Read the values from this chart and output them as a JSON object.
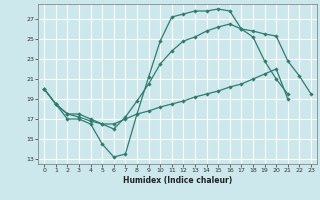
{
  "xlabel": "Humidex (Indice chaleur)",
  "background_color": "#cce8ec",
  "grid_color": "#ffffff",
  "line_color": "#2e7d6e",
  "xlim": [
    -0.5,
    23.5
  ],
  "ylim": [
    12.5,
    28.5
  ],
  "xticks": [
    0,
    1,
    2,
    3,
    4,
    5,
    6,
    7,
    8,
    9,
    10,
    11,
    12,
    13,
    14,
    15,
    16,
    17,
    18,
    19,
    20,
    21,
    22,
    23
  ],
  "yticks": [
    13,
    15,
    17,
    19,
    21,
    23,
    25,
    27
  ],
  "line1_x": [
    0,
    1,
    2,
    3,
    4,
    5,
    6,
    7,
    8,
    9,
    10,
    11,
    12,
    13,
    14,
    15,
    16,
    17,
    18,
    19,
    20,
    21
  ],
  "line1_y": [
    20.0,
    18.5,
    17.0,
    17.0,
    16.5,
    14.5,
    13.2,
    13.5,
    17.5,
    21.2,
    24.8,
    27.2,
    27.5,
    27.8,
    27.8,
    28.0,
    27.8,
    26.0,
    25.2,
    22.8,
    21.0,
    19.5
  ],
  "line2_x": [
    0,
    1,
    2,
    3,
    4,
    5,
    6,
    7,
    8,
    9,
    10,
    11,
    12,
    13,
    14,
    15,
    16,
    17,
    18,
    19,
    20,
    21,
    22,
    23
  ],
  "line2_y": [
    20.0,
    18.5,
    17.5,
    17.5,
    17.0,
    16.5,
    16.0,
    17.2,
    18.8,
    20.5,
    22.5,
    23.8,
    24.8,
    25.2,
    25.8,
    26.2,
    26.5,
    26.0,
    25.8,
    25.5,
    25.3,
    22.8,
    21.3,
    19.5
  ],
  "line3_x": [
    0,
    1,
    2,
    3,
    4,
    5,
    6,
    7,
    8,
    9,
    10,
    11,
    12,
    13,
    14,
    15,
    16,
    17,
    18,
    19,
    20,
    21,
    22,
    23
  ],
  "line3_y": [
    20.0,
    18.5,
    17.5,
    17.2,
    16.8,
    16.5,
    16.5,
    17.0,
    17.5,
    17.8,
    18.2,
    18.5,
    18.8,
    19.2,
    19.5,
    19.8,
    20.2,
    20.5,
    21.0,
    21.5,
    22.0,
    19.0,
    null,
    null
  ]
}
